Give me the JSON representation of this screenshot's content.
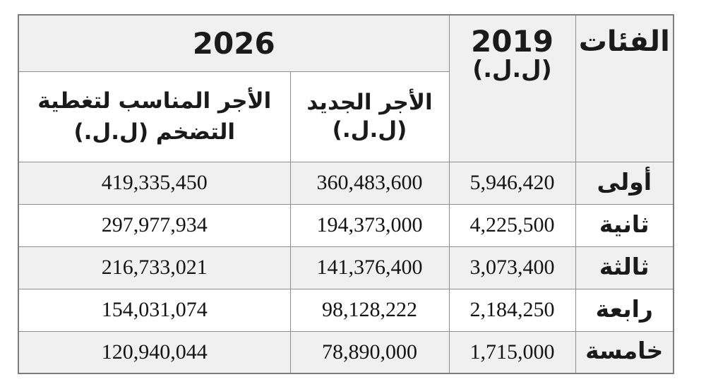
{
  "table": {
    "header": {
      "categories_label": "الفئات",
      "year2019": {
        "line1": "2019",
        "line2": "(ل.ل.)"
      },
      "year2026_label": "2026",
      "sub_new_wage": {
        "line1": "الأجر الجديد",
        "line2": "(ل.ل.)"
      },
      "sub_inflation_wage": {
        "line1": "الأجر المناسب لتغطية",
        "line2": "التضخم (ل.ل.)"
      }
    },
    "rows": [
      {
        "category": "أولى",
        "v2019": "5,946,420",
        "new_wage": "360,483,600",
        "inflation_wage": "419,335,450"
      },
      {
        "category": "ثانية",
        "v2019": "4,225,500",
        "new_wage": "194,373,000",
        "inflation_wage": "297,977,934"
      },
      {
        "category": "ثالثة",
        "v2019": "3,073,400",
        "new_wage": "141,376,400",
        "inflation_wage": "216,733,021"
      },
      {
        "category": "رابعة",
        "v2019": "2,184,250",
        "new_wage": "98,128,222",
        "inflation_wage": "154,031,074"
      },
      {
        "category": "خامسة",
        "v2019": "1,715,000",
        "new_wage": "78,890,000",
        "inflation_wage": "120,940,044"
      }
    ],
    "colors": {
      "header_fill": "#f0f0f0",
      "row_alt_fill": "#f0f0f0",
      "row_fill": "#ffffff",
      "border": "#8e8e8e",
      "text": "#1a1a1a"
    }
  },
  "chart_data": {
    "type": "table",
    "direction": "rtl",
    "columns": [
      {
        "key": "category",
        "label": "الفئات"
      },
      {
        "key": "salary_2019",
        "label": "2019 (ل.ل.)"
      },
      {
        "key": "new_salary_2026",
        "label": "2026 - الأجر الجديد (ل.ل.)"
      },
      {
        "key": "inflation_adjusted_salary_2026",
        "label": "2026 - الأجر المناسب لتغطية التضخم (ل.ل.)"
      }
    ],
    "rows": [
      {
        "category": "أولى",
        "salary_2019": 5946420,
        "new_salary_2026": 360483600,
        "inflation_adjusted_salary_2026": 419335450
      },
      {
        "category": "ثانية",
        "salary_2019": 4225500,
        "new_salary_2026": 194373000,
        "inflation_adjusted_salary_2026": 297977934
      },
      {
        "category": "ثالثة",
        "salary_2019": 3073400,
        "new_salary_2026": 141376400,
        "inflation_adjusted_salary_2026": 216733021
      },
      {
        "category": "رابعة",
        "salary_2019": 2184250,
        "new_salary_2026": 98128222,
        "inflation_adjusted_salary_2026": 154031074
      },
      {
        "category": "خامسة",
        "salary_2019": 1715000,
        "new_salary_2026": 78890000,
        "inflation_adjusted_salary_2026": 120940044
      }
    ],
    "layout": {
      "grid": true,
      "alternating_row_fill": true,
      "header_merged_cells": [
        "الفئات rowspan 2",
        "2019 rowspan 2",
        "2026 colspan 2"
      ]
    }
  }
}
